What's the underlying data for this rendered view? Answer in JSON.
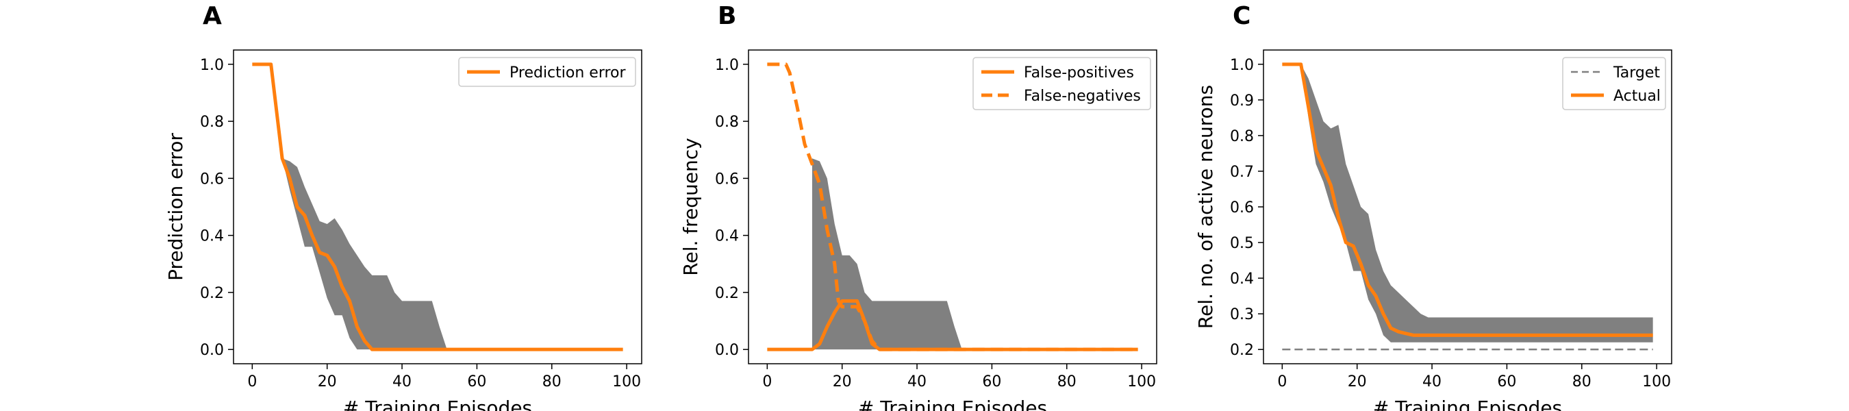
{
  "chart_data": [
    {
      "type": "line",
      "panel_label": "A",
      "title": "",
      "xlabel": "# Training Episodes",
      "ylabel": "Prediction error",
      "xlim": [
        -5,
        104
      ],
      "ylim": [
        -0.05,
        1.05
      ],
      "xticks": [
        "0",
        "20",
        "40",
        "60",
        "80",
        "100"
      ],
      "yticks": [
        "0.0",
        "0.2",
        "0.4",
        "0.6",
        "0.8",
        "1.0"
      ],
      "legend_position": "upper right",
      "band": {
        "color": "#808080",
        "x": [
          8,
          10,
          12,
          14,
          16,
          18,
          20,
          22,
          24,
          26,
          28,
          30,
          32,
          34,
          36,
          38,
          40,
          42,
          44,
          46,
          48,
          50,
          52
        ],
        "upper": [
          0.67,
          0.66,
          0.64,
          0.57,
          0.51,
          0.45,
          0.44,
          0.46,
          0.42,
          0.37,
          0.33,
          0.29,
          0.26,
          0.26,
          0.26,
          0.2,
          0.17,
          0.17,
          0.17,
          0.17,
          0.17,
          0.08,
          0.0
        ],
        "lower": [
          0.67,
          0.56,
          0.46,
          0.36,
          0.36,
          0.27,
          0.18,
          0.12,
          0.12,
          0.04,
          0.0,
          0.0,
          0.0,
          0.0,
          0.0,
          0.0,
          0.0,
          0.0,
          0.0,
          0.0,
          0.0,
          0.0,
          0.0
        ]
      },
      "series": [
        {
          "name": "Prediction error",
          "color": "#ff7f0e",
          "dash": "solid",
          "x": [
            0,
            5,
            8,
            10,
            12,
            14,
            16,
            18,
            20,
            22,
            24,
            26,
            28,
            30,
            32,
            40,
            60,
            80,
            99
          ],
          "y": [
            1.0,
            1.0,
            0.67,
            0.6,
            0.5,
            0.47,
            0.4,
            0.34,
            0.33,
            0.29,
            0.22,
            0.17,
            0.08,
            0.03,
            0.0,
            0.0,
            0.0,
            0.0,
            0.0
          ]
        }
      ]
    },
    {
      "type": "line",
      "panel_label": "B",
      "title": "",
      "xlabel": "# Training Episodes",
      "ylabel": "Rel. frequency",
      "xlim": [
        -5,
        104
      ],
      "ylim": [
        -0.05,
        1.05
      ],
      "xticks": [
        "0",
        "20",
        "40",
        "60",
        "80",
        "100"
      ],
      "yticks": [
        "0.0",
        "0.2",
        "0.4",
        "0.6",
        "0.8",
        "1.0"
      ],
      "legend_position": "upper right",
      "band": {
        "color": "#808080",
        "x": [
          12,
          14,
          16,
          18,
          20,
          22,
          24,
          26,
          28,
          30,
          32,
          34,
          36,
          38,
          40,
          42,
          44,
          46,
          48,
          50,
          52
        ],
        "upper": [
          0.67,
          0.66,
          0.6,
          0.44,
          0.33,
          0.33,
          0.3,
          0.2,
          0.17,
          0.17,
          0.17,
          0.17,
          0.17,
          0.17,
          0.17,
          0.17,
          0.17,
          0.17,
          0.17,
          0.08,
          0.0
        ],
        "lower": [
          0.0,
          0.0,
          0.0,
          0.0,
          0.0,
          0.0,
          0.0,
          0.0,
          0.0,
          0.0,
          0.0,
          0.0,
          0.0,
          0.0,
          0.0,
          0.0,
          0.0,
          0.0,
          0.0,
          0.0,
          0.0
        ]
      },
      "series": [
        {
          "name": "False-positives",
          "color": "#ff7f0e",
          "dash": "solid",
          "x": [
            0,
            12,
            14,
            16,
            18,
            20,
            22,
            24,
            26,
            28,
            30,
            40,
            60,
            80,
            99
          ],
          "y": [
            0.0,
            0.0,
            0.02,
            0.08,
            0.13,
            0.17,
            0.17,
            0.17,
            0.1,
            0.02,
            0.0,
            0.0,
            0.0,
            0.0,
            0.0
          ]
        },
        {
          "name": "False-negatives",
          "color": "#ff7f0e",
          "dash": "dashed",
          "x": [
            0,
            5,
            6,
            8,
            10,
            12,
            14,
            16,
            18,
            19,
            20,
            22,
            24,
            26,
            28,
            30,
            40,
            60,
            80,
            99
          ],
          "y": [
            1.0,
            1.0,
            0.97,
            0.85,
            0.72,
            0.65,
            0.58,
            0.42,
            0.3,
            0.17,
            0.15,
            0.15,
            0.15,
            0.1,
            0.03,
            0.0,
            0.0,
            0.0,
            0.0,
            0.0
          ]
        }
      ]
    },
    {
      "type": "line",
      "panel_label": "C",
      "title": "",
      "xlabel": "# Training Episodes",
      "ylabel": "Rel. no. of active neurons",
      "xlim": [
        -5,
        104
      ],
      "ylim": [
        0.16,
        1.04
      ],
      "xticks": [
        "0",
        "20",
        "40",
        "60",
        "80",
        "100"
      ],
      "yticks": [
        "0.2",
        "0.3",
        "0.4",
        "0.5",
        "0.6",
        "0.7",
        "0.8",
        "0.9",
        "1.0"
      ],
      "legend_position": "upper right",
      "band": {
        "color": "#808080",
        "x": [
          5,
          7,
          9,
          11,
          13,
          15,
          17,
          19,
          21,
          23,
          25,
          27,
          29,
          31,
          33,
          35,
          37,
          39,
          41,
          60,
          80,
          99
        ],
        "upper": [
          1.0,
          0.96,
          0.9,
          0.84,
          0.82,
          0.83,
          0.72,
          0.66,
          0.6,
          0.58,
          0.48,
          0.42,
          0.38,
          0.36,
          0.34,
          0.32,
          0.3,
          0.29,
          0.29,
          0.29,
          0.29,
          0.29
        ],
        "lower": [
          1.0,
          0.85,
          0.72,
          0.67,
          0.6,
          0.55,
          0.5,
          0.42,
          0.42,
          0.34,
          0.3,
          0.24,
          0.22,
          0.22,
          0.22,
          0.22,
          0.22,
          0.22,
          0.22,
          0.22,
          0.22,
          0.22
        ]
      },
      "series": [
        {
          "name": "Target",
          "color": "#808080",
          "dash": "dashed",
          "x": [
            0,
            99
          ],
          "y": [
            0.2,
            0.2
          ]
        },
        {
          "name": "Actual",
          "color": "#ff7f0e",
          "dash": "solid",
          "x": [
            0,
            5,
            7,
            9,
            11,
            13,
            15,
            17,
            19,
            21,
            23,
            25,
            27,
            29,
            31,
            33,
            35,
            40,
            60,
            80,
            99
          ],
          "y": [
            1.0,
            1.0,
            0.88,
            0.76,
            0.71,
            0.66,
            0.57,
            0.5,
            0.49,
            0.44,
            0.38,
            0.35,
            0.3,
            0.26,
            0.25,
            0.245,
            0.24,
            0.24,
            0.24,
            0.24,
            0.24
          ]
        }
      ]
    }
  ]
}
